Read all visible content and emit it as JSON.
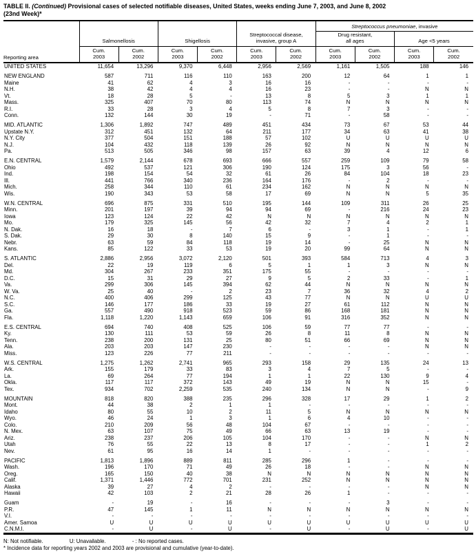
{
  "title": {
    "table_label": "TABLE II.",
    "continued": "(Continued)",
    "rest": "Provisional cases of selected notifiable diseases, United States, weeks ending June 7, 2003, and June 8, 2002",
    "line2": "(23nd Week)*"
  },
  "header": {
    "reporting_area_label": "Reporting area",
    "cum_label": "Cum.",
    "years": [
      "2003",
      "2002"
    ],
    "groups": {
      "salmonellosis": "Salmonellosis",
      "shigellosis": "Shigellosis",
      "strep_a_line1": "Streptococcal disease,",
      "strep_a_line2": "invasive, group A",
      "strep_pneumo_italic": "Streptococcus pneumoniae",
      "strep_pneumo_rest": ", invasive",
      "drug_resistant_line1": "Drug resistant,",
      "drug_resistant_line2": "all ages",
      "age_under5": "Age <5 years"
    }
  },
  "sections": [
    {
      "rows": [
        [
          "UNITED STATES",
          "11,654",
          "13,296",
          "9,370",
          "6,448",
          "2,956",
          "2,569",
          "1,161",
          "1,505",
          "188",
          "146"
        ]
      ]
    },
    {
      "rows": [
        [
          "NEW ENGLAND",
          "587",
          "711",
          "116",
          "110",
          "163",
          "200",
          "12",
          "64",
          "1",
          "1"
        ],
        [
          "Maine",
          "41",
          "62",
          "4",
          "3",
          "16",
          "16",
          "-",
          "-",
          "-",
          "-"
        ],
        [
          "N.H.",
          "38",
          "42",
          "4",
          "4",
          "16",
          "23",
          "-",
          "-",
          "N",
          "N"
        ],
        [
          "Vt.",
          "18",
          "28",
          "5",
          "-",
          "13",
          "8",
          "5",
          "3",
          "1",
          "1"
        ],
        [
          "Mass.",
          "325",
          "407",
          "70",
          "80",
          "113",
          "74",
          "N",
          "N",
          "N",
          "N"
        ],
        [
          "R.I.",
          "33",
          "28",
          "3",
          "4",
          "5",
          "8",
          "7",
          "3",
          "-",
          "-"
        ],
        [
          "Conn.",
          "132",
          "144",
          "30",
          "19",
          "-",
          "71",
          "-",
          "58",
          "-",
          "-"
        ]
      ]
    },
    {
      "rows": [
        [
          "MID. ATLANTIC",
          "1,306",
          "1,892",
          "747",
          "489",
          "451",
          "434",
          "73",
          "67",
          "53",
          "44"
        ],
        [
          "Upstate N.Y.",
          "312",
          "451",
          "132",
          "64",
          "211",
          "177",
          "34",
          "63",
          "41",
          "38"
        ],
        [
          "N.Y. City",
          "377",
          "504",
          "151",
          "188",
          "57",
          "102",
          "U",
          "U",
          "U",
          "U"
        ],
        [
          "N.J.",
          "104",
          "432",
          "118",
          "139",
          "26",
          "92",
          "N",
          "N",
          "N",
          "N"
        ],
        [
          "Pa.",
          "513",
          "505",
          "346",
          "98",
          "157",
          "63",
          "39",
          "4",
          "12",
          "6"
        ]
      ]
    },
    {
      "rows": [
        [
          "E.N. CENTRAL",
          "1,579",
          "2,144",
          "678",
          "693",
          "666",
          "557",
          "259",
          "109",
          "79",
          "58"
        ],
        [
          "Ohio",
          "492",
          "537",
          "121",
          "306",
          "190",
          "124",
          "175",
          "3",
          "56",
          "-"
        ],
        [
          "Ind.",
          "198",
          "154",
          "54",
          "32",
          "61",
          "26",
          "84",
          "104",
          "18",
          "23"
        ],
        [
          "Ill.",
          "441",
          "766",
          "340",
          "236",
          "164",
          "176",
          "-",
          "2",
          "-",
          "-"
        ],
        [
          "Mich.",
          "258",
          "344",
          "110",
          "61",
          "234",
          "162",
          "N",
          "N",
          "N",
          "N"
        ],
        [
          "Wis.",
          "190",
          "343",
          "53",
          "58",
          "17",
          "69",
          "N",
          "N",
          "5",
          "35"
        ]
      ]
    },
    {
      "rows": [
        [
          "W.N. CENTRAL",
          "696",
          "875",
          "331",
          "510",
          "195",
          "144",
          "109",
          "311",
          "26",
          "25"
        ],
        [
          "Minn.",
          "201",
          "197",
          "39",
          "94",
          "94",
          "69",
          "-",
          "216",
          "24",
          "23"
        ],
        [
          "Iowa",
          "123",
          "124",
          "22",
          "42",
          "N",
          "N",
          "N",
          "N",
          "N",
          "N"
        ],
        [
          "Mo.",
          "179",
          "325",
          "145",
          "56",
          "42",
          "32",
          "7",
          "4",
          "2",
          "1"
        ],
        [
          "N. Dak.",
          "16",
          "18",
          "-",
          "7",
          "6",
          "-",
          "3",
          "1",
          "-",
          "1"
        ],
        [
          "S. Dak.",
          "29",
          "30",
          "8",
          "140",
          "15",
          "9",
          "-",
          "1",
          "-",
          "-"
        ],
        [
          "Nebr.",
          "63",
          "59",
          "84",
          "118",
          "19",
          "14",
          "-",
          "25",
          "N",
          "N"
        ],
        [
          "Kans.",
          "85",
          "122",
          "33",
          "53",
          "19",
          "20",
          "99",
          "64",
          "N",
          "N"
        ]
      ]
    },
    {
      "rows": [
        [
          "S. ATLANTIC",
          "2,886",
          "2,956",
          "3,072",
          "2,120",
          "501",
          "393",
          "584",
          "713",
          "4",
          "3"
        ],
        [
          "Del.",
          "22",
          "19",
          "119",
          "6",
          "5",
          "1",
          "1",
          "3",
          "N",
          "N"
        ],
        [
          "Md.",
          "304",
          "267",
          "233",
          "351",
          "175",
          "55",
          "-",
          "-",
          "-",
          "-"
        ],
        [
          "D.C.",
          "15",
          "31",
          "29",
          "27",
          "9",
          "5",
          "2",
          "33",
          "-",
          "1"
        ],
        [
          "Va.",
          "299",
          "306",
          "145",
          "394",
          "62",
          "44",
          "N",
          "N",
          "N",
          "N"
        ],
        [
          "W. Va.",
          "25",
          "40",
          "-",
          "2",
          "23",
          "7",
          "36",
          "32",
          "4",
          "2"
        ],
        [
          "N.C.",
          "400",
          "406",
          "299",
          "125",
          "43",
          "77",
          "N",
          "N",
          "U",
          "U"
        ],
        [
          "S.C.",
          "146",
          "177",
          "186",
          "33",
          "19",
          "27",
          "61",
          "112",
          "N",
          "N"
        ],
        [
          "Ga.",
          "557",
          "490",
          "918",
          "523",
          "59",
          "86",
          "168",
          "181",
          "N",
          "N"
        ],
        [
          "Fla.",
          "1,118",
          "1,220",
          "1,143",
          "659",
          "106",
          "91",
          "316",
          "352",
          "N",
          "N"
        ]
      ]
    },
    {
      "rows": [
        [
          "E.S. CENTRAL",
          "694",
          "740",
          "408",
          "525",
          "106",
          "59",
          "77",
          "77",
          "-",
          "-"
        ],
        [
          "Ky.",
          "130",
          "111",
          "53",
          "59",
          "26",
          "8",
          "11",
          "8",
          "N",
          "N"
        ],
        [
          "Tenn.",
          "238",
          "200",
          "131",
          "25",
          "80",
          "51",
          "66",
          "69",
          "N",
          "N"
        ],
        [
          "Ala.",
          "203",
          "203",
          "147",
          "230",
          "-",
          "-",
          "-",
          "-",
          "N",
          "N"
        ],
        [
          "Miss.",
          "123",
          "226",
          "77",
          "211",
          "-",
          "-",
          "-",
          "-",
          "-",
          "-"
        ]
      ]
    },
    {
      "rows": [
        [
          "W.S. CENTRAL",
          "1,275",
          "1,262",
          "2,741",
          "965",
          "293",
          "158",
          "29",
          "135",
          "24",
          "13"
        ],
        [
          "Ark.",
          "155",
          "179",
          "33",
          "83",
          "3",
          "4",
          "7",
          "5",
          "-",
          "-"
        ],
        [
          "La.",
          "69",
          "264",
          "77",
          "194",
          "1",
          "1",
          "22",
          "130",
          "9",
          "4"
        ],
        [
          "Okla.",
          "117",
          "117",
          "372",
          "143",
          "49",
          "19",
          "N",
          "N",
          "15",
          "-"
        ],
        [
          "Tex.",
          "934",
          "702",
          "2,259",
          "535",
          "240",
          "134",
          "N",
          "N",
          "-",
          "9"
        ]
      ]
    },
    {
      "rows": [
        [
          "MOUNTAIN",
          "818",
          "820",
          "388",
          "235",
          "296",
          "328",
          "17",
          "29",
          "1",
          "2"
        ],
        [
          "Mont.",
          "44",
          "38",
          "2",
          "1",
          "1",
          "-",
          "-",
          "-",
          "-",
          "-"
        ],
        [
          "Idaho",
          "80",
          "55",
          "10",
          "2",
          "11",
          "5",
          "N",
          "N",
          "N",
          "N"
        ],
        [
          "Wyo.",
          "46",
          "24",
          "1",
          "3",
          "1",
          "6",
          "4",
          "10",
          "-",
          "-"
        ],
        [
          "Colo.",
          "210",
          "209",
          "56",
          "48",
          "104",
          "67",
          "-",
          "-",
          "-",
          "-"
        ],
        [
          "N. Mex.",
          "63",
          "107",
          "75",
          "49",
          "66",
          "63",
          "13",
          "19",
          "-",
          "-"
        ],
        [
          "Ariz.",
          "238",
          "237",
          "206",
          "105",
          "104",
          "170",
          "-",
          "-",
          "N",
          "N"
        ],
        [
          "Utah",
          "76",
          "55",
          "22",
          "13",
          "8",
          "17",
          "-",
          "-",
          "1",
          "2"
        ],
        [
          "Nev.",
          "61",
          "95",
          "16",
          "14",
          "1",
          "-",
          "-",
          "-",
          "-",
          "-"
        ]
      ]
    },
    {
      "rows": [
        [
          "PACIFIC",
          "1,813",
          "1,896",
          "889",
          "811",
          "285",
          "296",
          "1",
          "-",
          "-",
          "-"
        ],
        [
          "Wash.",
          "196",
          "170",
          "71",
          "49",
          "26",
          "18",
          "-",
          "-",
          "N",
          "N"
        ],
        [
          "Oreg.",
          "165",
          "150",
          "40",
          "38",
          "N",
          "N",
          "N",
          "N",
          "N",
          "N"
        ],
        [
          "Calif.",
          "1,371",
          "1,446",
          "772",
          "701",
          "231",
          "252",
          "N",
          "N",
          "N",
          "N"
        ],
        [
          "Alaska",
          "39",
          "27",
          "4",
          "2",
          "-",
          "-",
          "-",
          "-",
          "N",
          "N"
        ],
        [
          "Hawaii",
          "42",
          "103",
          "2",
          "21",
          "28",
          "26",
          "1",
          "-",
          "-",
          "-"
        ]
      ]
    },
    {
      "rows": [
        [
          "Guam",
          "-",
          "19",
          "-",
          "16",
          "-",
          "-",
          "-",
          "3",
          "-",
          "-"
        ],
        [
          "P.R.",
          "47",
          "145",
          "1",
          "11",
          "N",
          "N",
          "N",
          "N",
          "N",
          "N"
        ],
        [
          "V.I.",
          "-",
          "-",
          "-",
          "-",
          "-",
          "-",
          "-",
          "-",
          "-",
          "-"
        ],
        [
          "Amer. Samoa",
          "U",
          "U",
          "U",
          "U",
          "U",
          "U",
          "U",
          "U",
          "U",
          "U"
        ],
        [
          "C.N.M.I.",
          "-",
          "U",
          "-",
          "U",
          "-",
          "U",
          "-",
          "U",
          "-",
          "U"
        ]
      ]
    }
  ],
  "footnotes": {
    "n": "N: Not notifiable.",
    "u": "U: Unavailable.",
    "dash": "- : No reported cases.",
    "asterisk": "* Incidence data for reporting years 2002 and 2003 are provisional and cumulative (year-to-date)."
  }
}
